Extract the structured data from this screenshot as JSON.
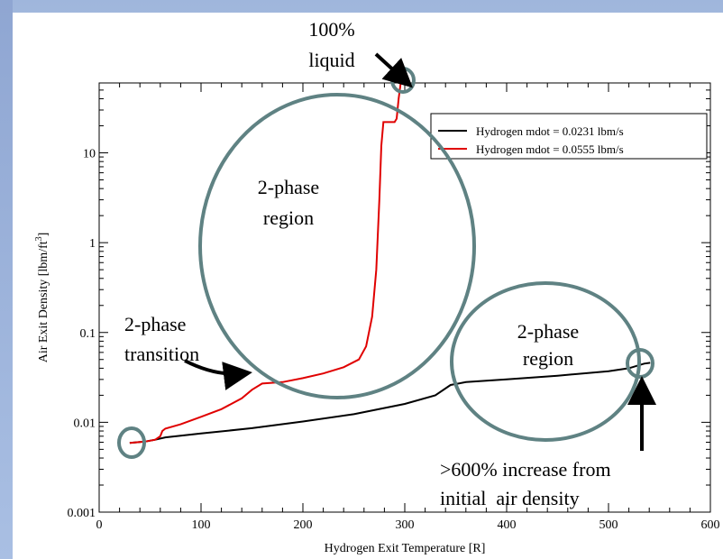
{
  "chart_data": {
    "type": "line",
    "title": "",
    "xlabel": "Hydrogen Exit Temperature [R]",
    "ylabel_main": "Air Exit Density [lbm/ft",
    "ylabel_sup": "3",
    "ylabel_end": "]",
    "xlim": [
      0,
      600
    ],
    "ylim": [
      0.001,
      60
    ],
    "yscale": "log",
    "x_ticks": [
      0,
      100,
      200,
      300,
      400,
      500,
      600
    ],
    "x_tick_labels": [
      "0",
      "100",
      "200",
      "300",
      "400",
      "500",
      "600"
    ],
    "y_ticks": [
      0.001,
      0.01,
      0.1,
      1,
      10
    ],
    "y_tick_labels": [
      "0.001",
      "0.01",
      "0.1",
      "1",
      "10"
    ],
    "legend_position": "top-right",
    "grid": false,
    "series": [
      {
        "name": "Hydrogen mdot = 0.0231 lbm/s",
        "color": "#000000",
        "points": [
          [
            30,
            0.0059
          ],
          [
            45,
            0.0061
          ],
          [
            55,
            0.0064
          ],
          [
            65,
            0.0068
          ],
          [
            80,
            0.0071
          ],
          [
            100,
            0.0075
          ],
          [
            150,
            0.0086
          ],
          [
            200,
            0.0102
          ],
          [
            250,
            0.0123
          ],
          [
            300,
            0.016
          ],
          [
            330,
            0.02
          ],
          [
            345,
            0.026
          ],
          [
            360,
            0.028
          ],
          [
            400,
            0.03
          ],
          [
            450,
            0.033
          ],
          [
            500,
            0.037
          ],
          [
            520,
            0.04
          ],
          [
            535,
            0.045
          ],
          [
            541,
            0.046
          ]
        ]
      },
      {
        "name": "Hydrogen mdot = 0.0555 lbm/s",
        "color": "#e00000",
        "points": [
          [
            30,
            0.0059
          ],
          [
            45,
            0.0061
          ],
          [
            55,
            0.0064
          ],
          [
            60,
            0.007
          ],
          [
            62,
            0.008
          ],
          [
            65,
            0.0085
          ],
          [
            80,
            0.0095
          ],
          [
            100,
            0.0115
          ],
          [
            120,
            0.014
          ],
          [
            140,
            0.0185
          ],
          [
            150,
            0.023
          ],
          [
            160,
            0.027
          ],
          [
            180,
            0.028
          ],
          [
            200,
            0.031
          ],
          [
            220,
            0.035
          ],
          [
            240,
            0.041
          ],
          [
            255,
            0.05
          ],
          [
            262,
            0.07
          ],
          [
            268,
            0.15
          ],
          [
            272,
            0.5
          ],
          [
            275,
            3.0
          ],
          [
            277,
            12
          ],
          [
            279,
            22
          ],
          [
            285,
            22
          ],
          [
            290,
            22
          ],
          [
            292,
            24
          ],
          [
            294,
            40
          ],
          [
            296,
            60
          ]
        ]
      }
    ],
    "annotations": [
      {
        "lines": [
          "100%",
          "liquid"
        ]
      },
      {
        "lines": [
          "2-phase",
          "region"
        ]
      },
      {
        "lines": [
          "2-phase",
          "transition"
        ]
      },
      {
        "lines": [
          "2-phase",
          "region"
        ]
      },
      {
        "lines": [
          ">600% increase from",
          "initial  air density"
        ]
      }
    ]
  },
  "colors": {
    "highlight_ellipse": "#5f8283",
    "arrow": "#000000"
  }
}
